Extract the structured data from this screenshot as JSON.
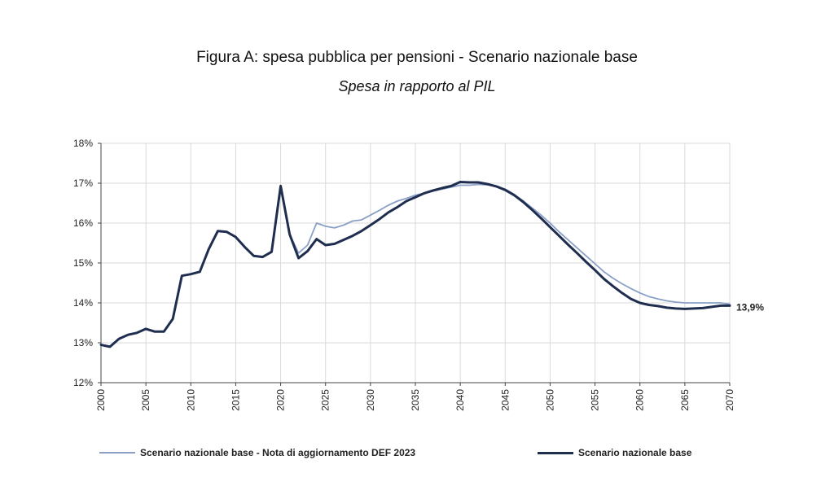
{
  "chart_data": {
    "type": "line",
    "title": "Figura A: spesa pubblica per pensioni - Scenario nazionale base",
    "subtitle": "Spesa in rapporto al PIL",
    "xlabel": "",
    "ylabel": "",
    "xlim": [
      2000,
      2070
    ],
    "ylim": [
      12,
      18
    ],
    "y_ticks": [
      "12%",
      "13%",
      "14%",
      "15%",
      "16%",
      "17%",
      "18%"
    ],
    "x_ticks": [
      "2000",
      "2005",
      "2010",
      "2015",
      "2020",
      "2025",
      "2030",
      "2035",
      "2040",
      "2045",
      "2050",
      "2055",
      "2060",
      "2065",
      "2070"
    ],
    "grid": true,
    "legend_position": "bottom",
    "end_label": "13,9%",
    "colors": {
      "nota": "#8aa0c6",
      "base": "#1f2d4f"
    },
    "series": [
      {
        "name": "Scenario nazionale base - Nota di aggiornamento DEF 2023",
        "x": [
          2000,
          2001,
          2002,
          2003,
          2004,
          2005,
          2006,
          2007,
          2008,
          2009,
          2010,
          2011,
          2012,
          2013,
          2014,
          2015,
          2016,
          2017,
          2018,
          2019,
          2020,
          2021,
          2022,
          2023,
          2024,
          2025,
          2026,
          2027,
          2028,
          2029,
          2030,
          2031,
          2032,
          2033,
          2034,
          2035,
          2036,
          2037,
          2038,
          2039,
          2040,
          2041,
          2042,
          2043,
          2044,
          2045,
          2046,
          2047,
          2048,
          2049,
          2050,
          2051,
          2052,
          2053,
          2054,
          2055,
          2056,
          2057,
          2058,
          2059,
          2060,
          2061,
          2062,
          2063,
          2064,
          2065,
          2066,
          2067,
          2068,
          2069,
          2070
        ],
        "values": [
          12.95,
          12.9,
          13.1,
          13.2,
          13.25,
          13.35,
          13.28,
          13.28,
          13.6,
          14.68,
          14.72,
          14.78,
          15.35,
          15.8,
          15.78,
          15.65,
          15.4,
          15.18,
          15.15,
          15.28,
          16.93,
          15.72,
          15.25,
          15.45,
          16.0,
          15.92,
          15.88,
          15.95,
          16.05,
          16.08,
          16.2,
          16.32,
          16.45,
          16.55,
          16.62,
          16.7,
          16.75,
          16.8,
          16.85,
          16.9,
          16.95,
          16.95,
          16.97,
          16.96,
          16.93,
          16.85,
          16.72,
          16.56,
          16.38,
          16.2,
          16.0,
          15.78,
          15.58,
          15.38,
          15.18,
          14.98,
          14.78,
          14.62,
          14.48,
          14.36,
          14.25,
          14.16,
          14.1,
          14.05,
          14.02,
          14.0,
          14.0,
          14.0,
          14.0,
          14.0,
          13.97
        ]
      },
      {
        "name": "Scenario nazionale base",
        "x": [
          2000,
          2001,
          2002,
          2003,
          2004,
          2005,
          2006,
          2007,
          2008,
          2009,
          2010,
          2011,
          2012,
          2013,
          2014,
          2015,
          2016,
          2017,
          2018,
          2019,
          2020,
          2021,
          2022,
          2023,
          2024,
          2025,
          2026,
          2027,
          2028,
          2029,
          2030,
          2031,
          2032,
          2033,
          2034,
          2035,
          2036,
          2037,
          2038,
          2039,
          2040,
          2041,
          2042,
          2043,
          2044,
          2045,
          2046,
          2047,
          2048,
          2049,
          2050,
          2051,
          2052,
          2053,
          2054,
          2055,
          2056,
          2057,
          2058,
          2059,
          2060,
          2061,
          2062,
          2063,
          2064,
          2065,
          2066,
          2067,
          2068,
          2069,
          2070
        ],
        "values": [
          12.95,
          12.9,
          13.1,
          13.2,
          13.25,
          13.35,
          13.28,
          13.28,
          13.6,
          14.68,
          14.72,
          14.78,
          15.35,
          15.8,
          15.78,
          15.65,
          15.4,
          15.18,
          15.15,
          15.28,
          16.93,
          15.72,
          15.12,
          15.3,
          15.6,
          15.45,
          15.48,
          15.58,
          15.68,
          15.8,
          15.95,
          16.1,
          16.27,
          16.4,
          16.55,
          16.65,
          16.75,
          16.82,
          16.88,
          16.93,
          17.03,
          17.02,
          17.02,
          16.98,
          16.92,
          16.83,
          16.7,
          16.53,
          16.33,
          16.12,
          15.9,
          15.68,
          15.46,
          15.25,
          15.03,
          14.82,
          14.6,
          14.42,
          14.25,
          14.1,
          14.0,
          13.95,
          13.92,
          13.88,
          13.86,
          13.85,
          13.86,
          13.87,
          13.9,
          13.93,
          13.93
        ]
      }
    ]
  }
}
